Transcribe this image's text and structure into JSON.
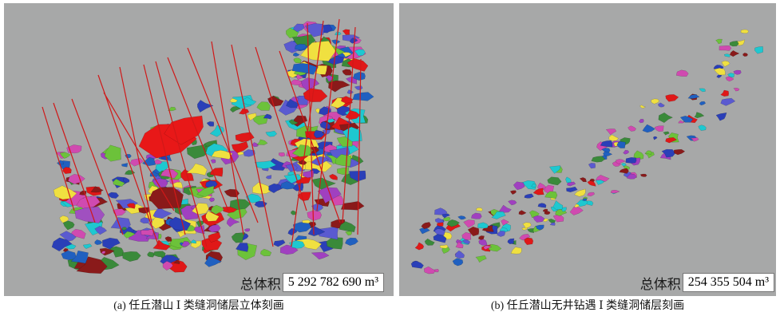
{
  "panels": [
    {
      "volume_label": "总体积",
      "volume_value": "5 292 782 690 m³",
      "caption": "(a) 任丘潜山 Ⅰ 类缝洞储层立体刻画"
    },
    {
      "volume_label": "总体积",
      "volume_value": "254 355 504 m³",
      "caption": "(b) 任丘潜山无井钻遇 Ⅰ 类缝洞储层刻画"
    }
  ]
}
